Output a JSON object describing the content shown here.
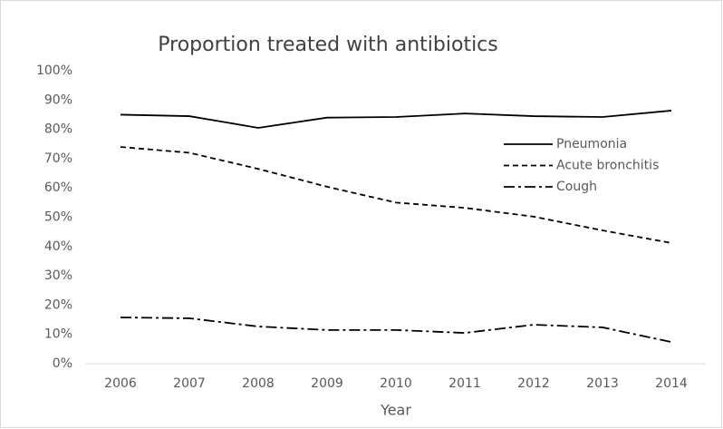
{
  "chart_data": {
    "type": "line",
    "title": "Proportion treated with antibiotics",
    "xlabel": "Year",
    "categories": [
      "2006",
      "2007",
      "2008",
      "2009",
      "2010",
      "2011",
      "2012",
      "2013",
      "2014"
    ],
    "series": [
      {
        "name": "Pneumonia",
        "color": "#000000",
        "linestyle": "solid",
        "values": [
          85,
          84.5,
          80.5,
          84,
          84.2,
          85.4,
          84.5,
          84.2,
          86.4
        ]
      },
      {
        "name": "Acute bronchitis",
        "color": "#000000",
        "linestyle": "dashed",
        "values": [
          74,
          72,
          66.5,
          60.4,
          55,
          53.2,
          50.2,
          45.5,
          41.2
        ]
      },
      {
        "name": "Cough",
        "color": "#000000",
        "linestyle": "dashdot",
        "values": [
          15.8,
          15.5,
          12.7,
          11.5,
          11.5,
          10.5,
          13.3,
          12.4,
          7.4
        ]
      }
    ],
    "ylim": [
      0,
      100
    ],
    "yticks": [
      {
        "value": 0,
        "label": "0%"
      },
      {
        "value": 10,
        "label": "10%"
      },
      {
        "value": 20,
        "label": "20%"
      },
      {
        "value": 30,
        "label": "30%"
      },
      {
        "value": 40,
        "label": "40%"
      },
      {
        "value": 50,
        "label": "50%"
      },
      {
        "value": 60,
        "label": "60%"
      },
      {
        "value": 70,
        "label": "70%"
      },
      {
        "value": 80,
        "label": "80%"
      },
      {
        "value": 90,
        "label": "90%"
      },
      {
        "value": 100,
        "label": "100%"
      }
    ],
    "grid": false,
    "legend": "right"
  }
}
